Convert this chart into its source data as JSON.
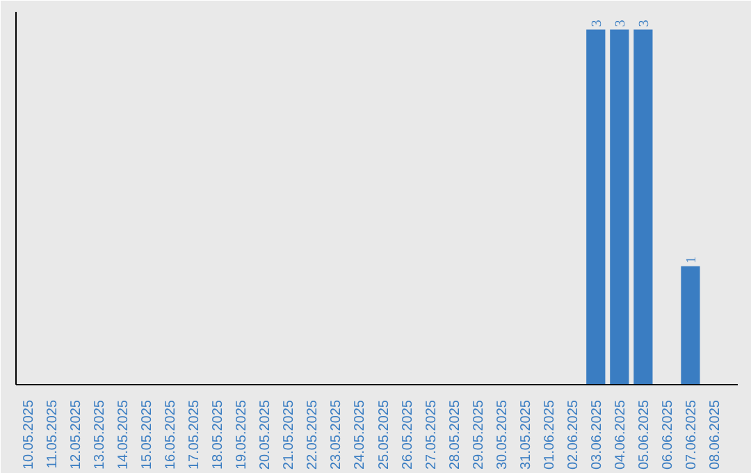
{
  "chart_data": {
    "type": "bar",
    "categories": [
      "10.05.2025",
      "11.05.2025",
      "12.05.2025",
      "13.05.2025",
      "14.05.2025",
      "15.05.2025",
      "16.05.2025",
      "17.05.2025",
      "18.05.2025",
      "19.05.2025",
      "20.05.2025",
      "21.05.2025",
      "22.05.2025",
      "23.05.2025",
      "24.05.2025",
      "25.05.2025",
      "26.05.2025",
      "27.05.2025",
      "28.05.2025",
      "29.05.2025",
      "30.05.2025",
      "31.05.2025",
      "01.06.2025",
      "02.06.2025",
      "03.06.2025",
      "04.06.2025",
      "05.06.2025",
      "06.06.2025",
      "07.06.2025",
      "08.06.2025"
    ],
    "values": [
      null,
      null,
      null,
      null,
      null,
      null,
      null,
      null,
      null,
      null,
      null,
      null,
      null,
      null,
      null,
      null,
      null,
      null,
      null,
      null,
      null,
      null,
      null,
      null,
      3,
      3,
      3,
      null,
      1,
      null
    ],
    "color": "#3a7dc2",
    "data_labels": true
  }
}
